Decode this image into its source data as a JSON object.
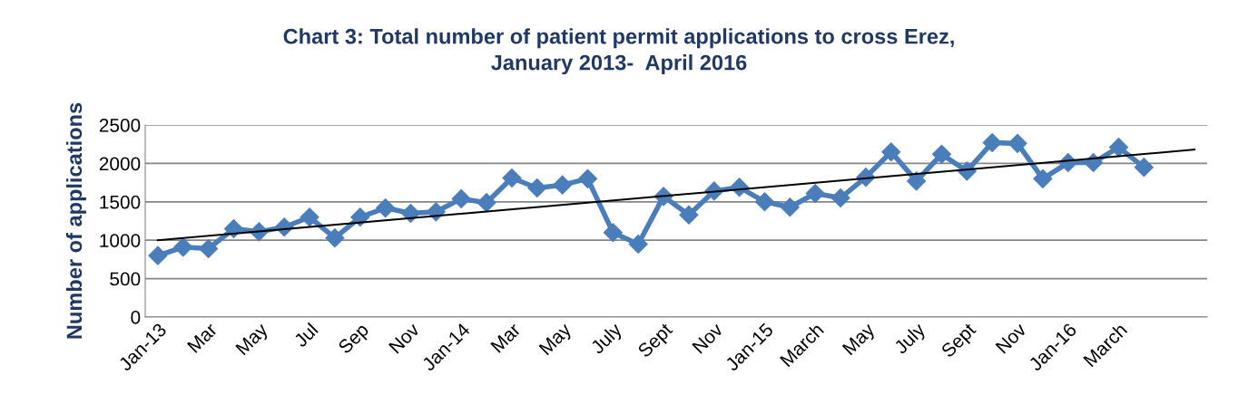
{
  "chart_data": {
    "type": "line",
    "title": "Chart 3: Total number of patient permit applications to cross Erez,\nJanuary 2013-  April 2016",
    "ylabel": "Number of applications",
    "categories": [
      "Jan-13",
      null,
      "Mar",
      null,
      "May",
      null,
      "Jul",
      null,
      "Sep",
      null,
      "Nov",
      null,
      "Jan-14",
      null,
      "Mar",
      null,
      "May",
      null,
      "July",
      null,
      "Sept",
      null,
      "Nov",
      null,
      "Jan-15",
      null,
      "March",
      null,
      "May",
      null,
      "July",
      null,
      "Sept",
      null,
      "Nov",
      null,
      "Jan-16",
      null,
      "March",
      null,
      null,
      null
    ],
    "series": [
      {
        "color": "#4a7ebb",
        "marker": "diamond",
        "values": [
          800,
          910,
          890,
          1150,
          1110,
          1170,
          1300,
          1030,
          1300,
          1420,
          1350,
          1370,
          1540,
          1490,
          1810,
          1680,
          1720,
          1800,
          1100,
          950,
          1570,
          1330,
          1640,
          1690,
          1500,
          1430,
          1610,
          1550,
          1820,
          2150,
          1770,
          2120,
          1900,
          2270,
          2260,
          1800,
          2010,
          2010,
          2210,
          1950,
          null,
          null
        ]
      },
      {
        "color": "#000000",
        "marker": "none",
        "values": [
          1000,
          null,
          null,
          null,
          null,
          null,
          null,
          null,
          null,
          null,
          null,
          null,
          null,
          null,
          null,
          null,
          null,
          null,
          null,
          null,
          null,
          null,
          null,
          null,
          null,
          null,
          null,
          null,
          null,
          null,
          null,
          null,
          null,
          null,
          null,
          null,
          null,
          null,
          null,
          null,
          null,
          2180
        ]
      }
    ],
    "ylim": [
      0,
      2500
    ],
    "yticks": [
      0,
      500,
      1000,
      1500,
      2000,
      2500
    ],
    "grid": "y",
    "legend": false
  }
}
